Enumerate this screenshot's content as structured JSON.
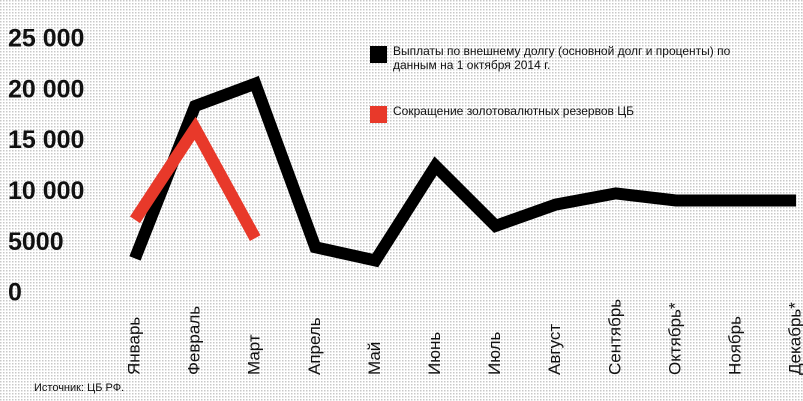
{
  "chart_data": {
    "type": "line",
    "categories": [
      "Январь",
      "Февраль",
      "Март",
      "Апрель",
      "Май",
      "Июнь",
      "Июль",
      "Август",
      "Сентябрь",
      "Октябрь*",
      "Ноябрь",
      "Декабрь*"
    ],
    "series": [
      {
        "name": "Выплаты по внешнему долгу (основной долг и проценты) по данным на 1 октября 2014 г.",
        "color": "#000000",
        "values": [
          3700,
          18700,
          20900,
          4800,
          3500,
          12800,
          6900,
          9000,
          10100,
          9400,
          9400,
          9400
        ]
      },
      {
        "name": "Сокращение золотовалютных резервов ЦБ",
        "color": "#e8392a",
        "values": [
          7500,
          16500,
          5700,
          null,
          null,
          null,
          null,
          null,
          null,
          null,
          null,
          null
        ]
      }
    ],
    "ylim": [
      0,
      25000
    ],
    "yticks": [
      0,
      5000,
      {
        "value": 10000,
        "label": "10 000"
      },
      {
        "value": 15000,
        "label": "15 000"
      },
      {
        "value": 20000,
        "label": "20 000"
      },
      {
        "value": 25000,
        "label": "25 000"
      }
    ],
    "source": "Источник: ЦБ РФ."
  }
}
